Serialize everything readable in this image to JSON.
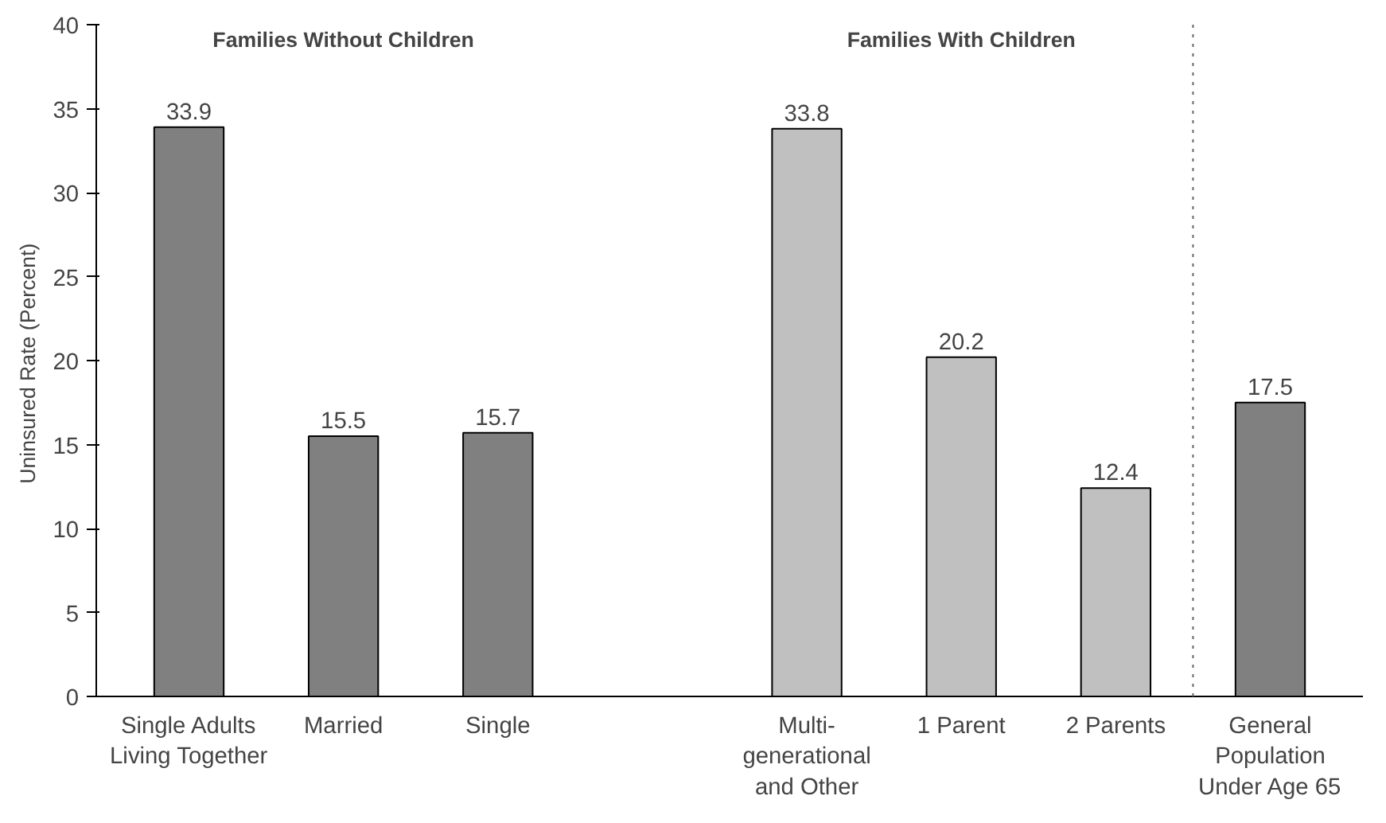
{
  "chart_data": {
    "type": "bar",
    "ylabel": "Uninsured Rate  (Percent)",
    "categories": [
      "Single Adults\nLiving Together",
      "Married",
      "Single",
      null,
      "Multi-\ngenerational\nand Other",
      "1 Parent",
      "2 Parents",
      "General\nPopulation\nUnder Age 65"
    ],
    "values": [
      33.9,
      15.5,
      15.7,
      null,
      33.8,
      20.2,
      12.4,
      17.5
    ],
    "colors": [
      "#808080",
      "#808080",
      "#808080",
      "#808080",
      "#c0c0c0",
      "#c0c0c0",
      "#c0c0c0",
      "#808080"
    ],
    "ylim": [
      0,
      40
    ],
    "yticks": [
      0,
      5,
      10,
      15,
      20,
      25,
      30,
      35,
      40
    ],
    "data_labels": true,
    "grid": false,
    "annotations": [
      "Families Without Children",
      "Families With Children"
    ]
  }
}
